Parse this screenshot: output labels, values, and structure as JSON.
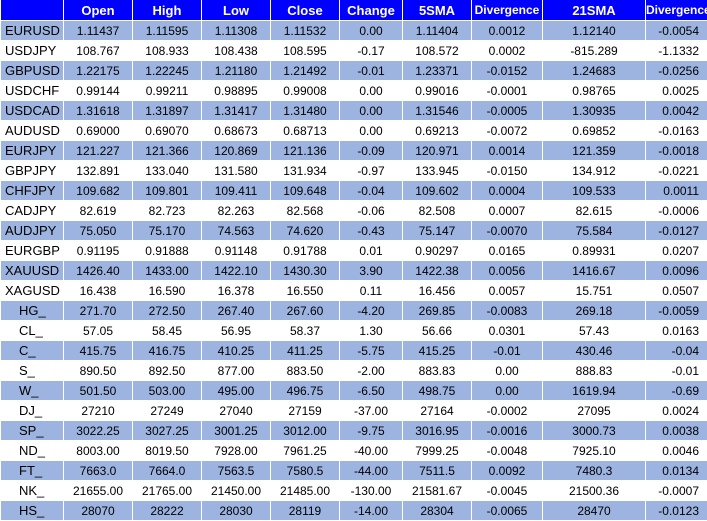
{
  "headers": [
    "",
    "Open",
    "High",
    "Low",
    "Close",
    "Change",
    "5SMA",
    "Divergence",
    "21SMA",
    "Divergence"
  ],
  "rows": [
    {
      "symbol": "EURUSD",
      "open": "1.11437",
      "high": "1.11595",
      "low": "1.11308",
      "close": "1.11532",
      "change": "0.00",
      "sma5": "1.11404",
      "div5": "0.0012",
      "sma21": "1.12140",
      "div21": "-0.0054"
    },
    {
      "symbol": "USDJPY",
      "open": "108.767",
      "high": "108.933",
      "low": "108.438",
      "close": "108.595",
      "change": "-0.17",
      "sma5": "108.572",
      "div5": "0.0002",
      "sma21": "-815.289",
      "div21": "-1.1332"
    },
    {
      "symbol": "GBPUSD",
      "open": "1.22175",
      "high": "1.22245",
      "low": "1.21180",
      "close": "1.21492",
      "change": "-0.01",
      "sma5": "1.23371",
      "div5": "-0.0152",
      "sma21": "1.24683",
      "div21": "-0.0256"
    },
    {
      "symbol": "USDCHF",
      "open": "0.99144",
      "high": "0.99211",
      "low": "0.98895",
      "close": "0.99008",
      "change": "0.00",
      "sma5": "0.99016",
      "div5": "-0.0001",
      "sma21": "0.98765",
      "div21": "0.0025"
    },
    {
      "symbol": "USDCAD",
      "open": "1.31618",
      "high": "1.31897",
      "low": "1.31417",
      "close": "1.31480",
      "change": "0.00",
      "sma5": "1.31546",
      "div5": "-0.0005",
      "sma21": "1.30935",
      "div21": "0.0042"
    },
    {
      "symbol": "AUDUSD",
      "open": "0.69000",
      "high": "0.69070",
      "low": "0.68673",
      "close": "0.68713",
      "change": "0.00",
      "sma5": "0.69213",
      "div5": "-0.0072",
      "sma21": "0.69852",
      "div21": "-0.0163"
    },
    {
      "symbol": "EURJPY",
      "open": "121.227",
      "high": "121.366",
      "low": "120.869",
      "close": "121.136",
      "change": "-0.09",
      "sma5": "120.971",
      "div5": "0.0014",
      "sma21": "121.359",
      "div21": "-0.0018"
    },
    {
      "symbol": "GBPJPY",
      "open": "132.891",
      "high": "133.040",
      "low": "131.580",
      "close": "131.934",
      "change": "-0.97",
      "sma5": "133.945",
      "div5": "-0.0150",
      "sma21": "134.912",
      "div21": "-0.0221"
    },
    {
      "symbol": "CHFJPY",
      "open": "109.682",
      "high": "109.801",
      "low": "109.411",
      "close": "109.648",
      "change": "-0.04",
      "sma5": "109.602",
      "div5": "0.0004",
      "sma21": "109.533",
      "div21": "0.0011"
    },
    {
      "symbol": "CADJPY",
      "open": "82.619",
      "high": "82.723",
      "low": "82.263",
      "close": "82.568",
      "change": "-0.06",
      "sma5": "82.508",
      "div5": "0.0007",
      "sma21": "82.615",
      "div21": "-0.0006"
    },
    {
      "symbol": "AUDJPY",
      "open": "75.050",
      "high": "75.170",
      "low": "74.563",
      "close": "74.620",
      "change": "-0.43",
      "sma5": "75.147",
      "div5": "-0.0070",
      "sma21": "75.584",
      "div21": "-0.0127"
    },
    {
      "symbol": "EURGBP",
      "open": "0.91195",
      "high": "0.91888",
      "low": "0.91148",
      "close": "0.91788",
      "change": "0.01",
      "sma5": "0.90297",
      "div5": "0.0165",
      "sma21": "0.89931",
      "div21": "0.0207"
    },
    {
      "symbol": "XAUUSD",
      "open": "1426.40",
      "high": "1433.00",
      "low": "1422.10",
      "close": "1430.30",
      "change": "3.90",
      "sma5": "1422.38",
      "div5": "0.0056",
      "sma21": "1416.67",
      "div21": "0.0096"
    },
    {
      "symbol": "XAGUSD",
      "open": "16.438",
      "high": "16.590",
      "low": "16.378",
      "close": "16.550",
      "change": "0.11",
      "sma5": "16.456",
      "div5": "0.0057",
      "sma21": "15.751",
      "div21": "0.0507"
    },
    {
      "symbol": "HG_",
      "open": "271.70",
      "high": "272.50",
      "low": "267.40",
      "close": "267.60",
      "change": "-4.20",
      "sma5": "269.85",
      "div5": "-0.0083",
      "sma21": "269.18",
      "div21": "-0.0059"
    },
    {
      "symbol": "CL_",
      "open": "57.05",
      "high": "58.45",
      "low": "56.95",
      "close": "58.37",
      "change": "1.30",
      "sma5": "56.66",
      "div5": "0.0301",
      "sma21": "57.43",
      "div21": "0.0163"
    },
    {
      "symbol": "C_",
      "open": "415.75",
      "high": "416.75",
      "low": "410.25",
      "close": "411.25",
      "change": "-5.75",
      "sma5": "415.25",
      "div5": "-0.01",
      "sma21": "430.46",
      "div21": "-0.04"
    },
    {
      "symbol": "S_",
      "open": "890.50",
      "high": "892.50",
      "low": "877.00",
      "close": "883.50",
      "change": "-2.00",
      "sma5": "883.83",
      "div5": "0.00",
      "sma21": "888.83",
      "div21": "-0.01"
    },
    {
      "symbol": "W_",
      "open": "501.50",
      "high": "503.00",
      "low": "495.00",
      "close": "496.75",
      "change": "-6.50",
      "sma5": "498.75",
      "div5": "0.00",
      "sma21": "1619.94",
      "div21": "-0.69"
    },
    {
      "symbol": "DJ_",
      "open": "27210",
      "high": "27249",
      "low": "27040",
      "close": "27159",
      "change": "-37.00",
      "sma5": "27164",
      "div5": "-0.0002",
      "sma21": "27095",
      "div21": "0.0024"
    },
    {
      "symbol": "SP_",
      "open": "3022.25",
      "high": "3027.25",
      "low": "3001.25",
      "close": "3012.00",
      "change": "-9.75",
      "sma5": "3016.95",
      "div5": "-0.0016",
      "sma21": "3000.73",
      "div21": "0.0038"
    },
    {
      "symbol": "ND_",
      "open": "8003.00",
      "high": "8019.50",
      "low": "7928.00",
      "close": "7961.25",
      "change": "-40.00",
      "sma5": "7999.25",
      "div5": "-0.0048",
      "sma21": "7925.10",
      "div21": "0.0046"
    },
    {
      "symbol": "FT_",
      "open": "7663.0",
      "high": "7664.0",
      "low": "7563.5",
      "close": "7580.5",
      "change": "-44.00",
      "sma5": "7511.5",
      "div5": "0.0092",
      "sma21": "7480.3",
      "div21": "0.0134"
    },
    {
      "symbol": "NK_",
      "open": "21655.00",
      "high": "21765.00",
      "low": "21450.00",
      "close": "21485.00",
      "change": "-130.00",
      "sma5": "21581.67",
      "div5": "-0.0045",
      "sma21": "21500.36",
      "div21": "-0.0007"
    },
    {
      "symbol": "HS_",
      "open": "28070",
      "high": "28222",
      "low": "28030",
      "close": "28119",
      "change": "-14.00",
      "sma5": "28304",
      "div5": "-0.0065",
      "sma21": "28470",
      "div21": "-0.0123"
    }
  ],
  "colors": {
    "header_bg": "#0000ff",
    "header_text": "#ffffff",
    "row_dark": "#9db4e1",
    "row_light": "#ffffff"
  }
}
